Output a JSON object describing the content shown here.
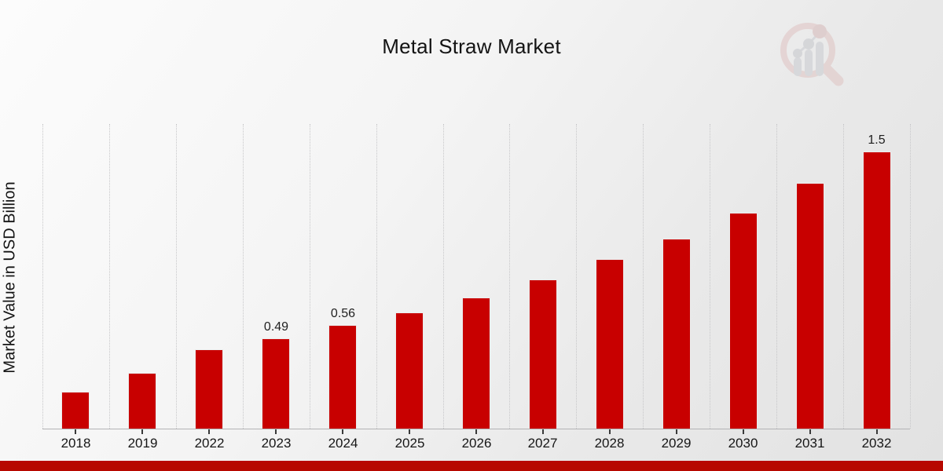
{
  "title": "Metal Straw Market",
  "chart_data": {
    "type": "bar",
    "title": "Metal Straw Market",
    "xlabel": "",
    "ylabel": "Market Value in USD Billion",
    "categories": [
      "2018",
      "2019",
      "2022",
      "2023",
      "2024",
      "2025",
      "2026",
      "2027",
      "2028",
      "2029",
      "2030",
      "2031",
      "2032"
    ],
    "values": [
      0.2,
      0.3,
      0.43,
      0.49,
      0.56,
      0.63,
      0.71,
      0.81,
      0.92,
      1.03,
      1.17,
      1.33,
      1.5
    ],
    "data_labels": [
      "",
      "",
      "",
      "0.49",
      "0.56",
      "",
      "",
      "",
      "",
      "",
      "",
      "",
      "1.5"
    ],
    "ylim": [
      0,
      1.65
    ],
    "bar_color": "#c80000",
    "grid": "vertical-dotted",
    "gridline_color": "#c7c7c9",
    "axis_line_color": "#b3b3b5",
    "legend": "none"
  },
  "branding": {
    "watermark_icon": "magnifier-bar-chart-logo-icon",
    "watermark_ring_color": "#dfc3c2",
    "watermark_bar_color": "#c8cacf",
    "footer_stripe_color": "#b70800"
  }
}
